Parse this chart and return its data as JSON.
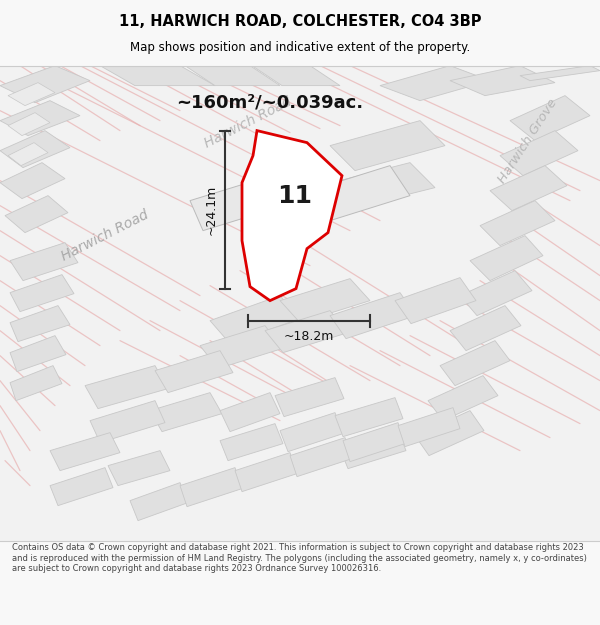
{
  "title": "11, HARWICH ROAD, COLCHESTER, CO4 3BP",
  "subtitle": "Map shows position and indicative extent of the property.",
  "area_text": "~160m²/~0.039ac.",
  "dim_v": "~24.1m",
  "dim_h": "~18.2m",
  "property_number": "11",
  "footer": "Contains OS data © Crown copyright and database right 2021. This information is subject to Crown copyright and database rights 2023 and is reproduced with the permission of HM Land Registry. The polygons (including the associated geometry, namely x, y co-ordinates) are subject to Crown copyright and database rights 2023 Ordnance Survey 100026316.",
  "bg_color": "#f8f8f8",
  "map_bg": "#f0f0f0",
  "road_color_pink": "#e8b0b0",
  "building_fill": "#e0e0e0",
  "building_edge": "#c8c8c8",
  "property_fill": "#ffffff",
  "property_edge": "#dd0000",
  "title_color": "#000000",
  "dim_color": "#333333",
  "road_label_color": "#aaaaaa"
}
